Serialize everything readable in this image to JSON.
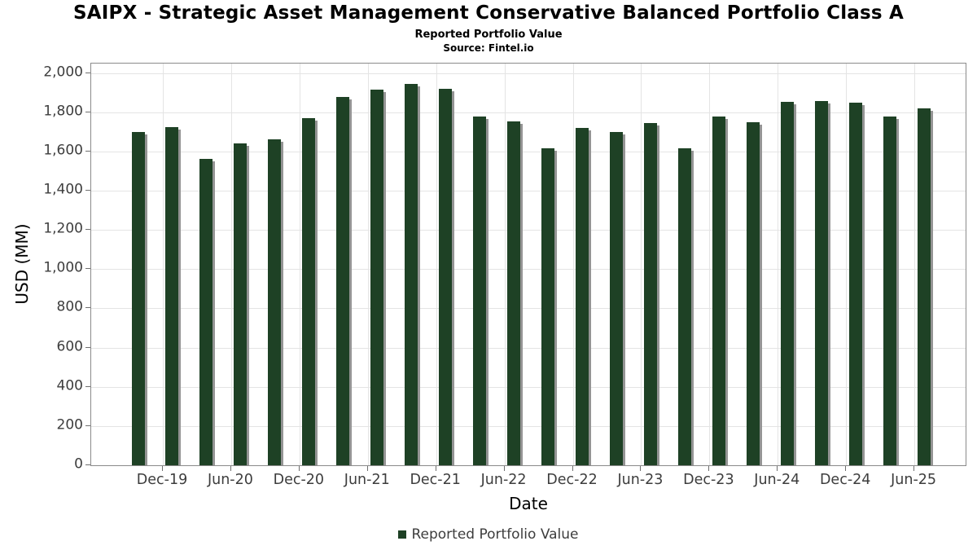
{
  "header": {
    "title": "SAIPX - Strategic Asset Management Conservative Balanced Portfolio Class A",
    "subtitle": "Reported Portfolio Value",
    "source": "Source: Fintel.io"
  },
  "axes": {
    "x_label": "Date",
    "y_label": "USD (MM)"
  },
  "legend": {
    "label": "Reported Portfolio Value",
    "position": "bottom-center",
    "marker_color": "#1e4125"
  },
  "colors": {
    "bar": "#1e4125",
    "bar_shadow": "#949494",
    "grid": "#e4e4e4",
    "spine": "#8a8a8a",
    "tick": "#6f6f6f",
    "tick_text": "#3d3d3d",
    "title_text": "#000000"
  },
  "chart_data": {
    "type": "bar",
    "title": "SAIPX - Strategic Asset Management Conservative Balanced Portfolio Class A",
    "subtitle": "Reported Portfolio Value",
    "source": "Source: Fintel.io",
    "xlabel": "Date",
    "ylabel": "USD (MM)",
    "ylim": [
      0,
      2048
    ],
    "ytick_interval": 200,
    "ytick_labels": [
      "0",
      "200",
      "400",
      "600",
      "800",
      "1,000",
      "1,200",
      "1,400",
      "1,600",
      "1,800",
      "2,000"
    ],
    "x_tick_labels": [
      "Dec-19",
      "Jun-20",
      "Dec-20",
      "Jun-21",
      "Dec-21",
      "Jun-22",
      "Dec-22",
      "Jun-23",
      "Dec-23",
      "Jun-24",
      "Dec-24",
      "Jun-25"
    ],
    "bars_per_tick_interval": 2,
    "grid": true,
    "legend_position": "bottom-center",
    "series": [
      {
        "name": "Reported Portfolio Value",
        "color": "#1e4125",
        "values": [
          1700,
          1722,
          1560,
          1640,
          1660,
          1768,
          1877,
          1917,
          1943,
          1919,
          1779,
          1752,
          1614,
          1721,
          1699,
          1746,
          1614,
          1776,
          1749,
          1851,
          1856,
          1848,
          1777,
          1821
        ]
      }
    ]
  }
}
